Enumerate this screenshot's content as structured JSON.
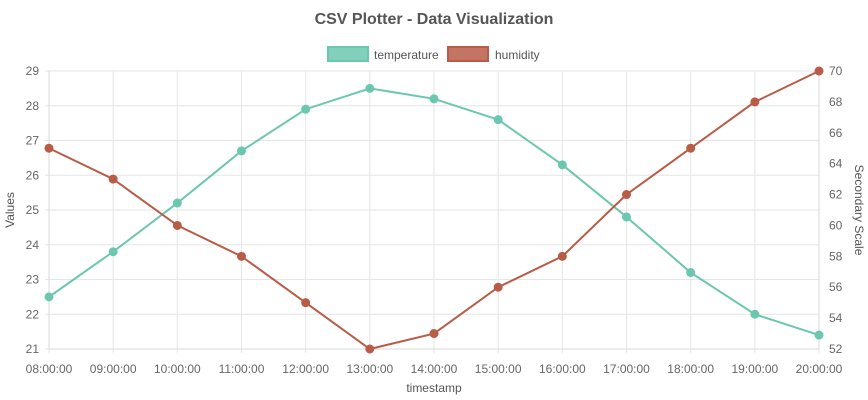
{
  "chart_data": {
    "type": "line",
    "title": "CSV Plotter - Data Visualization",
    "xlabel": "timestamp",
    "ylabel": "Values",
    "y2label": "Secondary Scale",
    "categories": [
      "08:00:00",
      "09:00:00",
      "10:00:00",
      "11:00:00",
      "12:00:00",
      "13:00:00",
      "14:00:00",
      "15:00:00",
      "16:00:00",
      "17:00:00",
      "18:00:00",
      "19:00:00",
      "20:00:00"
    ],
    "ylim": [
      21,
      29
    ],
    "yticks": [
      "21",
      "22",
      "23",
      "24",
      "25",
      "26",
      "27",
      "28",
      "29"
    ],
    "y2lim": [
      52,
      70
    ],
    "y2ticks": [
      "52",
      "54",
      "56",
      "58",
      "60",
      "62",
      "64",
      "66",
      "68",
      "70"
    ],
    "grid": true,
    "legend_position": "top",
    "series": [
      {
        "name": "temperature",
        "axis": "left",
        "color": "#6cc7b0",
        "values": [
          22.5,
          23.8,
          25.2,
          26.7,
          27.9,
          28.5,
          28.2,
          27.6,
          26.3,
          24.8,
          23.2,
          22.0,
          21.4
        ]
      },
      {
        "name": "humidity",
        "axis": "right",
        "color": "#b85c47",
        "values": [
          65,
          63,
          60,
          58,
          55,
          52,
          53,
          56,
          58,
          62,
          65,
          68,
          70
        ]
      }
    ]
  }
}
